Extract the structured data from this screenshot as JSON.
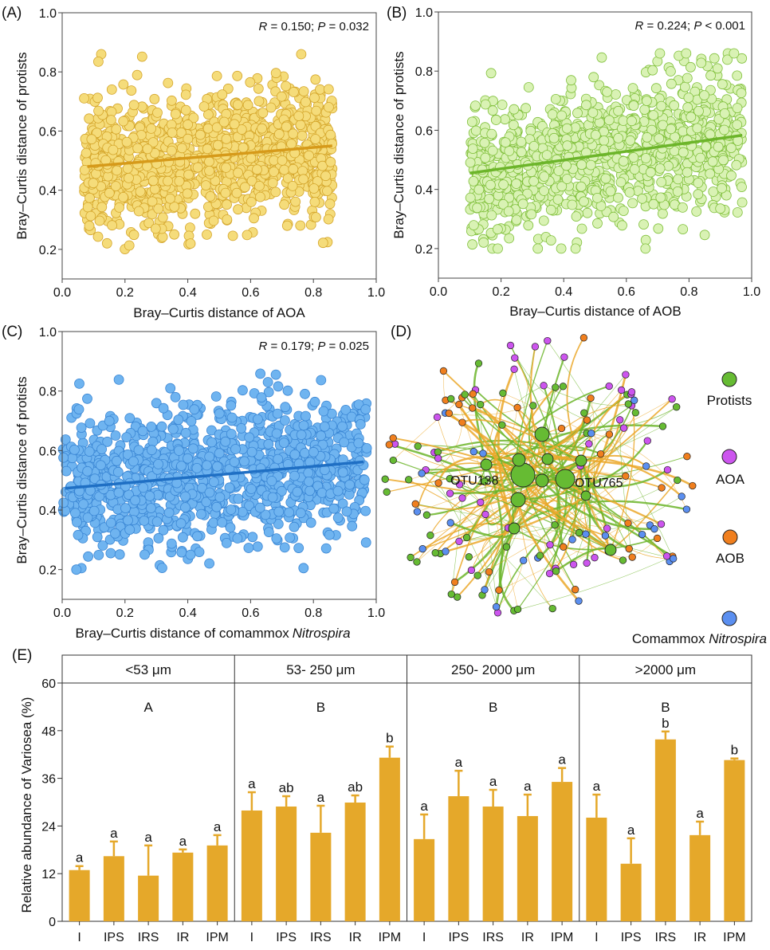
{
  "chart_data": [
    {
      "id": "A",
      "type": "scatter",
      "panel_label": "(A)",
      "xlabel": "Bray–Curtis distance of AOA",
      "ylabel": "Bray–Curtis distance of protists",
      "xlim": [
        0.0,
        1.0
      ],
      "ylim": [
        0.1,
        1.0
      ],
      "xticks": [
        "0.0",
        "0.2",
        "0.4",
        "0.6",
        "0.8",
        "1.0"
      ],
      "yticks": [
        "0.2",
        "0.4",
        "0.6",
        "0.8",
        "1.0"
      ],
      "stat_R_label": "R",
      "stat_R_value": " = 0.150; ",
      "stat_P_label": "P",
      "stat_P_value": " = 0.032",
      "point_color": "#f5dc7a",
      "point_edge": "#d4a52a",
      "line_color": "#d69a1a",
      "points_summary": {
        "n_approx": 1500,
        "x_range": [
          0.07,
          0.86
        ],
        "y_range": [
          0.2,
          0.86
        ],
        "x_center": 0.45,
        "y_center": 0.51
      },
      "fit_line": {
        "x": [
          0.08,
          0.86
        ],
        "y": [
          0.48,
          0.55
        ]
      },
      "seed": 11
    },
    {
      "id": "B",
      "type": "scatter",
      "panel_label": "(B)",
      "xlabel": "Bray–Curtis distance of AOB",
      "ylabel": "Bray–Curtis distance of protists",
      "xlim": [
        0.0,
        1.0
      ],
      "ylim": [
        0.1,
        1.0
      ],
      "xticks": [
        "0.0",
        "0.2",
        "0.4",
        "0.6",
        "0.8",
        "1.0"
      ],
      "yticks": [
        "0.2",
        "0.4",
        "0.6",
        "0.8",
        "1.0"
      ],
      "stat_R_label": "R",
      "stat_R_value": " = 0.224; ",
      "stat_P_label": "P",
      "stat_P_value": " < 0.001",
      "point_color": "#d9f2b4",
      "point_edge": "#7fbf3a",
      "line_color": "#6cb52a",
      "points_summary": {
        "n_approx": 1500,
        "x_range": [
          0.1,
          0.97
        ],
        "y_range": [
          0.2,
          0.86
        ],
        "x_center": 0.5,
        "y_center": 0.52
      },
      "fit_line": {
        "x": [
          0.1,
          0.97
        ],
        "y": [
          0.455,
          0.583
        ]
      },
      "seed": 23
    },
    {
      "id": "C",
      "type": "scatter",
      "panel_label": "(C)",
      "xlabel": "Bray–Curtis distance of comammox",
      "xlabel_italic": "Nitrospira",
      "ylabel": "Bray–Curtis distance of protists",
      "xlim": [
        0.0,
        1.0
      ],
      "ylim": [
        0.1,
        1.0
      ],
      "xticks": [
        "0.0",
        "0.2",
        "0.4",
        "0.6",
        "0.8",
        "1.0"
      ],
      "yticks": [
        "0.2",
        "0.4",
        "0.6",
        "0.8",
        "1.0"
      ],
      "stat_R_label": "R",
      "stat_R_value": " = 0.179; ",
      "stat_P_label": "P",
      "stat_P_value": " = 0.025",
      "point_color": "#6fb4f0",
      "point_edge": "#3a86d4",
      "line_color": "#1f6fc4",
      "points_summary": {
        "n_approx": 1500,
        "x_range": [
          0.0,
          0.97
        ],
        "y_range": [
          0.2,
          0.86
        ],
        "x_center": 0.45,
        "y_center": 0.52
      },
      "fit_line": {
        "x": [
          0.01,
          0.96
        ],
        "y": [
          0.473,
          0.562
        ]
      },
      "seed": 37
    },
    {
      "id": "D",
      "type": "network",
      "panel_label": "(D)",
      "hub_labels": [
        "OTU138",
        "OTU765"
      ],
      "legend": [
        {
          "label": "Protists",
          "italic": "",
          "color": "#66bb33"
        },
        {
          "label": "AOA",
          "italic": "",
          "color": "#cc55ee"
        },
        {
          "label": "AOB",
          "italic": "",
          "color": "#f07f1e"
        },
        {
          "label": "Comammox ",
          "italic": "Nitrospira",
          "color": "#5b8ff0"
        }
      ],
      "edge_colors": {
        "protist_links": "#6cb52a",
        "other_links": "#eba82a"
      },
      "seed": 5
    },
    {
      "id": "E",
      "type": "bar",
      "panel_label": "(E)",
      "ylabel": "Relative abundance of Variosea (%)",
      "ylim": [
        0,
        60
      ],
      "yticks": [
        "0",
        "12",
        "24",
        "36",
        "48",
        "60"
      ],
      "bar_color": "#e5a82a",
      "facets": [
        {
          "strip": "<53 μm",
          "group_letter": "A",
          "categories": [
            "I",
            "IPS",
            "IRS",
            "IR",
            "IPM"
          ],
          "values": [
            12.9,
            16.4,
            11.5,
            17.3,
            19.1
          ],
          "errors_upper": [
            13.9,
            20.1,
            19.1,
            18.1,
            21.7
          ],
          "letters": [
            "a",
            "a",
            "a",
            "a",
            "a"
          ]
        },
        {
          "strip": "53- 250 μm",
          "group_letter": "B",
          "categories": [
            "I",
            "IPS",
            "IRS",
            "IR",
            "IPM"
          ],
          "values": [
            27.9,
            28.9,
            22.3,
            29.9,
            41.2
          ],
          "errors_upper": [
            32.5,
            31.5,
            29.1,
            31.7,
            44.0
          ],
          "letters": [
            "a",
            "ab",
            "a",
            "ab",
            "b"
          ]
        },
        {
          "strip": "250- 2000 μm",
          "group_letter": "B",
          "categories": [
            "I",
            "IPS",
            "IRS",
            "IR",
            "IPM"
          ],
          "values": [
            20.7,
            31.5,
            28.9,
            26.5,
            35.1
          ],
          "errors_upper": [
            26.9,
            37.9,
            33.1,
            31.9,
            38.6
          ],
          "letters": [
            "a",
            "a",
            "a",
            "a",
            "a"
          ]
        },
        {
          "strip": ">2000 μm",
          "group_letter": "B",
          "categories": [
            "I",
            "IPS",
            "IRS",
            "IR",
            "IPM"
          ],
          "values": [
            26.1,
            14.5,
            45.8,
            21.7,
            40.6
          ],
          "errors_upper": [
            31.9,
            20.9,
            47.8,
            25.1,
            41.0
          ],
          "letters": [
            "a",
            "a",
            "b",
            "a",
            "b"
          ]
        }
      ]
    }
  ]
}
